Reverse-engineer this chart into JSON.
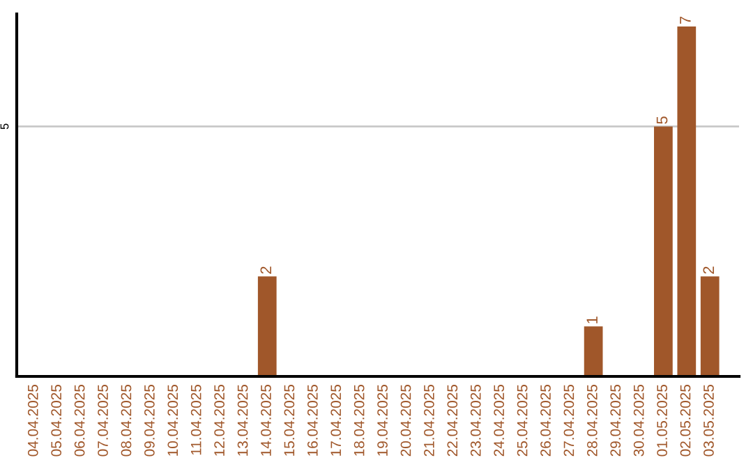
{
  "chart_data": {
    "type": "bar",
    "categories": [
      "04.04.2025",
      "05.04.2025",
      "06.04.2025",
      "07.04.2025",
      "08.04.2025",
      "09.04.2025",
      "10.04.2025",
      "11.04.2025",
      "12.04.2025",
      "13.04.2025",
      "14.04.2025",
      "15.04.2025",
      "16.04.2025",
      "17.04.2025",
      "18.04.2025",
      "19.04.2025",
      "20.04.2025",
      "21.04.2025",
      "22.04.2025",
      "23.04.2025",
      "24.04.2025",
      "25.04.2025",
      "26.04.2025",
      "27.04.2025",
      "28.04.2025",
      "29.04.2025",
      "30.04.2025",
      "01.05.2025",
      "02.05.2025",
      "03.05.2025"
    ],
    "values": [
      0,
      0,
      0,
      0,
      0,
      0,
      0,
      0,
      0,
      0,
      2,
      0,
      0,
      0,
      0,
      0,
      0,
      0,
      0,
      0,
      0,
      0,
      0,
      0,
      1,
      0,
      0,
      5,
      7,
      2
    ],
    "value_labels": [
      null,
      null,
      null,
      null,
      null,
      null,
      null,
      null,
      null,
      null,
      "2",
      null,
      null,
      null,
      null,
      null,
      null,
      null,
      null,
      null,
      null,
      null,
      null,
      null,
      "1",
      null,
      null,
      "5",
      "7",
      "2"
    ],
    "color": "#a0572a",
    "ylim": [
      0,
      7.25
    ],
    "yticks": [
      5
    ],
    "grid": "y",
    "legend": false
  }
}
